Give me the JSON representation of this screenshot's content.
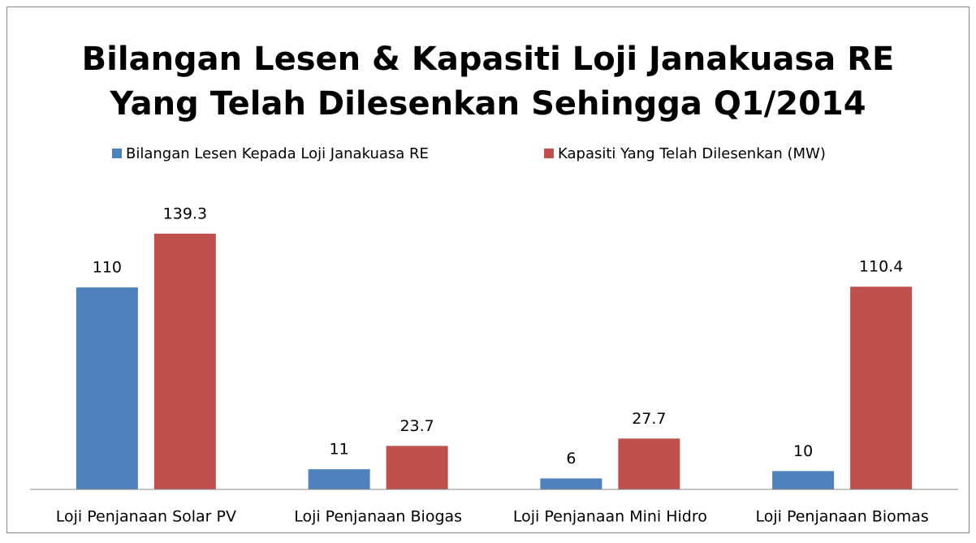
{
  "chart_data": {
    "type": "bar",
    "title": [
      "Bilangan Lesen & Kapasiti Loji Janakuasa RE",
      "Yang Telah Dilesenkan Sehingga Q1/2014"
    ],
    "categories": [
      "Loji Penjanaan Solar PV",
      "Loji Penjanaan Biogas",
      "Loji Penjanaan Mini Hidro",
      "Loji Penjanaan Biomas"
    ],
    "series": [
      {
        "name": "Bilangan Lesen Kepada Loji Janakuasa RE",
        "color": "#4f81bd",
        "values": [
          110,
          11,
          6,
          10
        ]
      },
      {
        "name": "Kapasiti Yang Telah Dilesenkan (MW)",
        "color": "#c0504d",
        "values": [
          139.3,
          23.7,
          27.7,
          110.4
        ]
      }
    ],
    "ylim": [
      0,
      160
    ],
    "legend": "top",
    "grid": false
  }
}
